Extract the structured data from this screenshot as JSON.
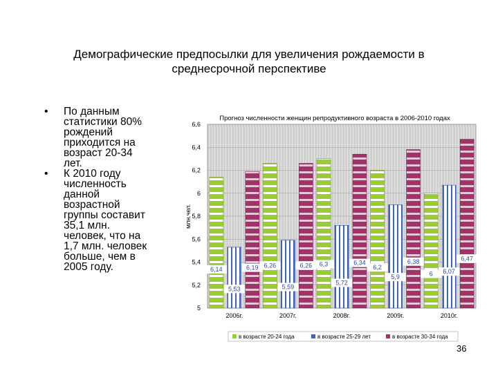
{
  "slide": {
    "title_line1": "Демографические предпосылки для увеличения рождаемости в",
    "title_line2": "среднесрочной перспективе",
    "bullets": [
      [
        "По данным",
        "статистики 80%",
        "рождений",
        "приходится на",
        "возраст 20-34",
        "лет."
      ],
      [
        "К 2010 году",
        "численность",
        "данной",
        "возрастной",
        "группы составит",
        "35,1 млн.",
        "человек, что на",
        "1,7 млн. человек",
        "больше, чем в",
        "2005 году."
      ]
    ],
    "bullet_symbol": "•",
    "page_number": "36"
  },
  "chart_data": {
    "type": "bar",
    "title": "Прогноз численности женщин репродуктивного возраста в 2006-2010 годах",
    "ylabel": "млн.чел.",
    "ylim": [
      5,
      6.6
    ],
    "yticks": [
      "5",
      "5,2",
      "5,4",
      "5,6",
      "5,8",
      "6",
      "6,2",
      "6,4",
      "6,6"
    ],
    "categories": [
      "2006г.",
      "2007г.",
      "2008г.",
      "2009г.",
      "2010г."
    ],
    "series": [
      {
        "name": "в возрасте 20-24 года",
        "values": [
          6.14,
          6.26,
          6.3,
          6.2,
          6.0
        ],
        "labels": [
          "6,14",
          "6,26",
          "6,3",
          "6,2",
          "6"
        ],
        "color": "#9acd32"
      },
      {
        "name": "в возрасте 25-29 лет",
        "values": [
          5.53,
          5.59,
          5.72,
          5.9,
          6.07
        ],
        "labels": [
          "5,53",
          "5,59",
          "5,72",
          "5,9",
          "6,07"
        ],
        "color": "#3d63c4"
      },
      {
        "name": "в возрасте 30-34 года",
        "values": [
          6.19,
          6.26,
          6.34,
          6.38,
          6.47
        ],
        "labels": [
          "6,19",
          "6,26",
          "6,34",
          "6,38",
          "6,47"
        ],
        "color": "#a2336b"
      }
    ],
    "grid": true,
    "legend_position": "bottom",
    "plot_background": "#d0d0d0"
  }
}
